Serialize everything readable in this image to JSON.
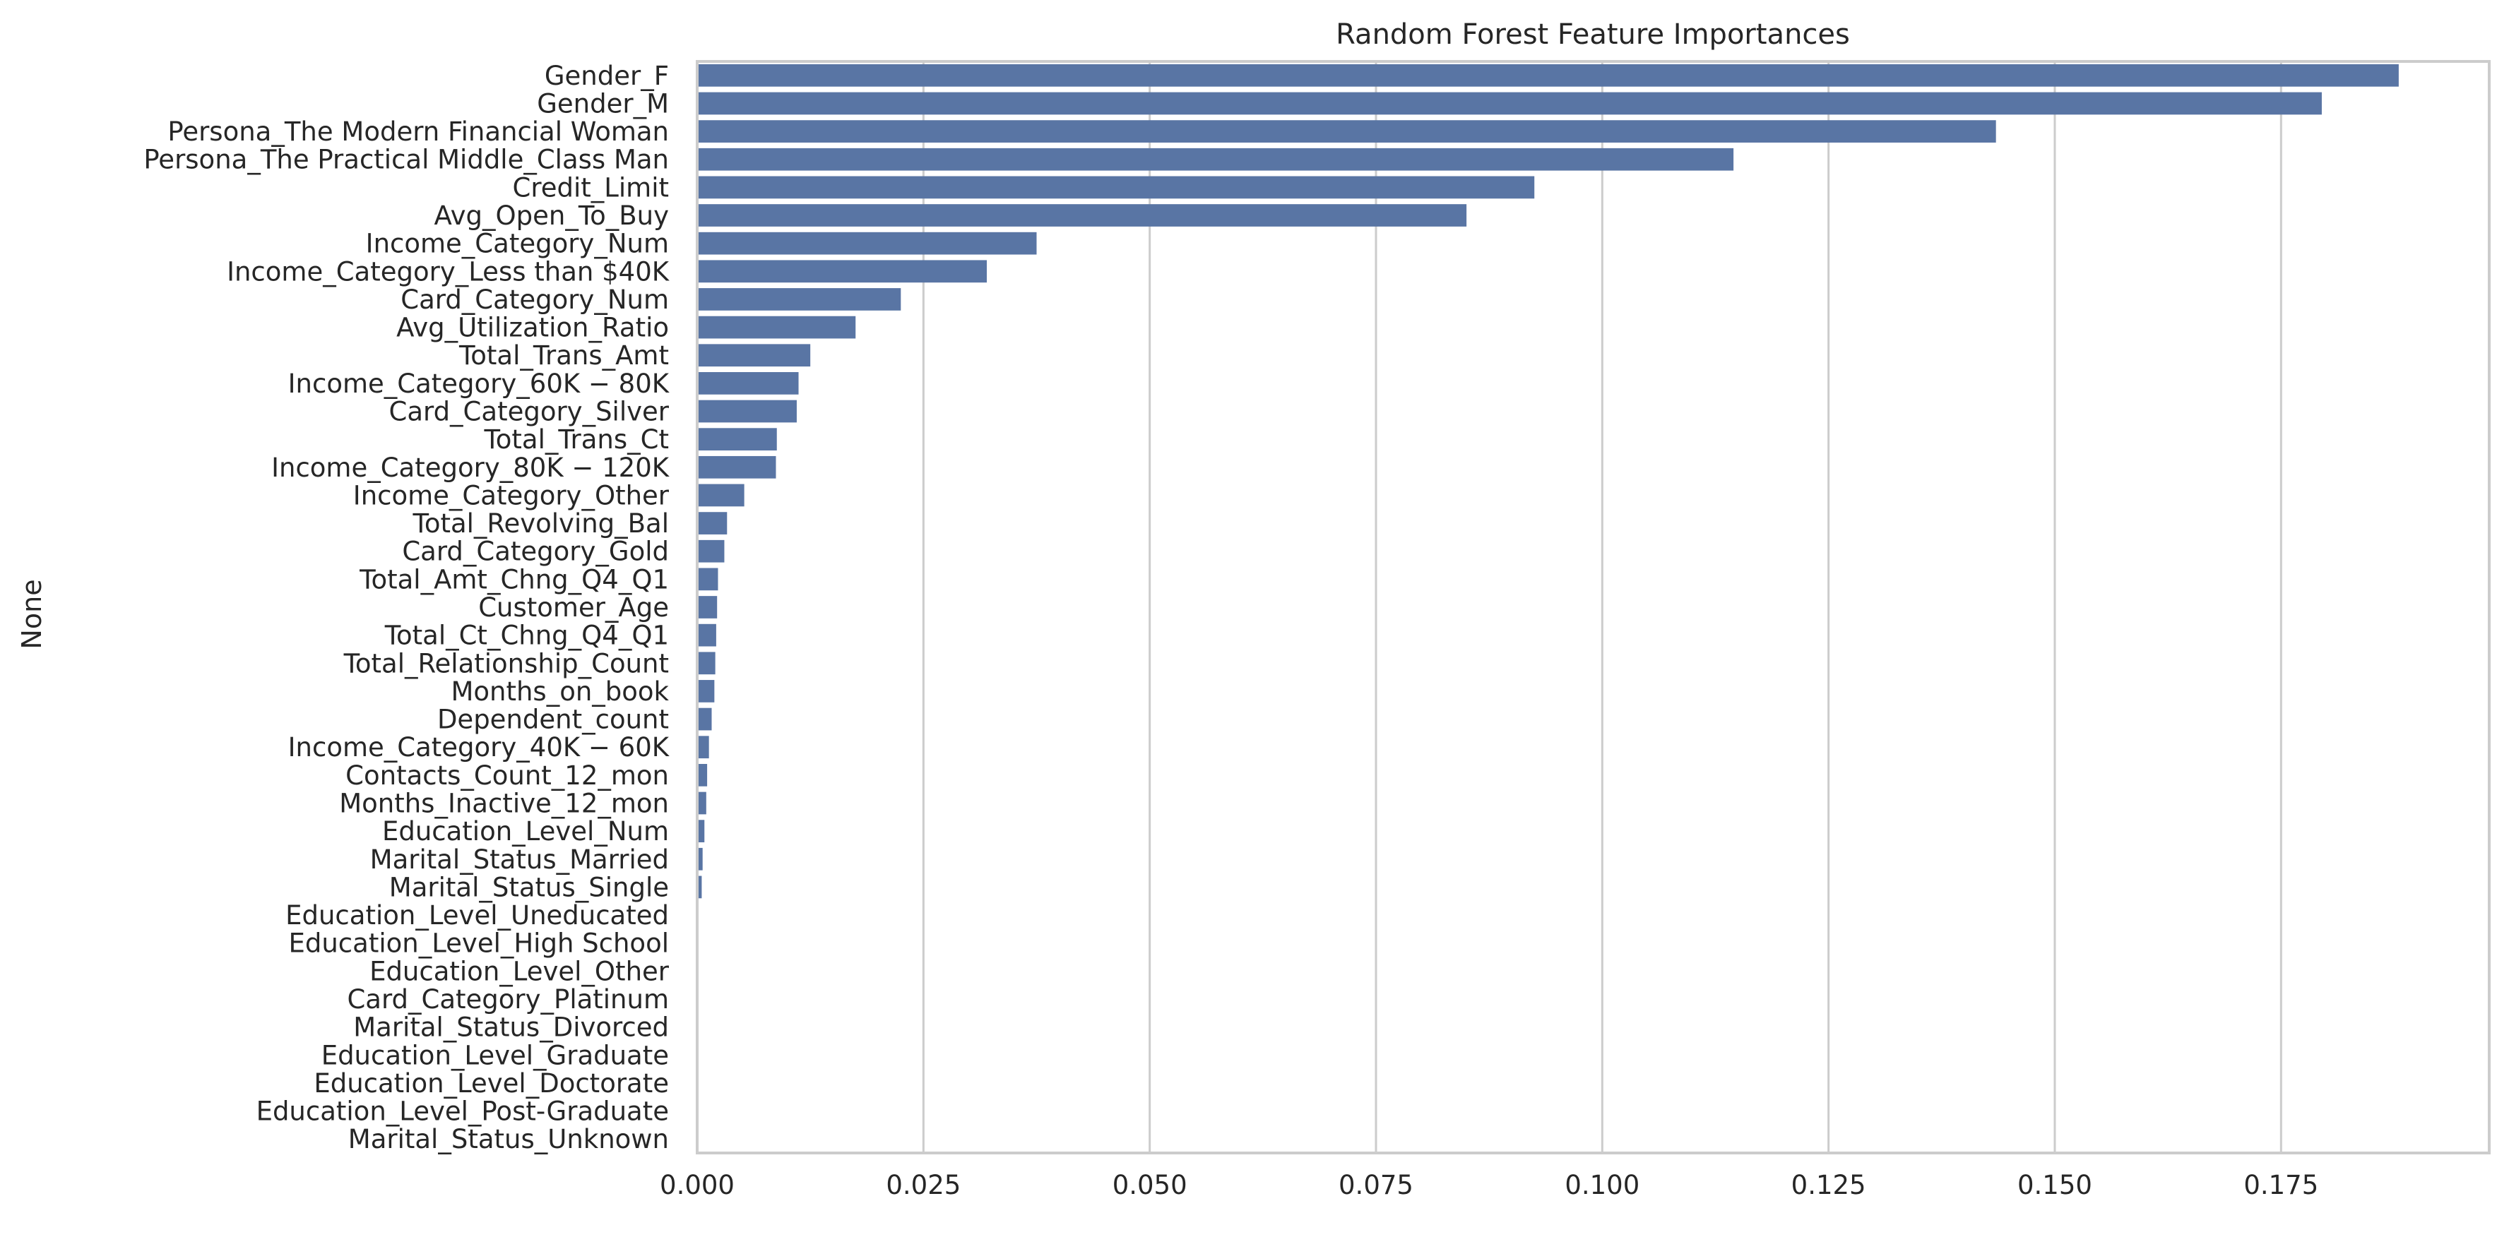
{
  "chart_data": {
    "type": "bar",
    "orientation": "horizontal",
    "title": "Random Forest Feature Importances",
    "xlabel": "",
    "ylabel": "None",
    "xlim": [
      0,
      0.198
    ],
    "xticks": [
      "0.000",
      "0.025",
      "0.050",
      "0.075",
      "0.100",
      "0.125",
      "0.150",
      "0.175"
    ],
    "grid": "vertical",
    "bar_color": "#5975a4",
    "categories": [
      "Gender_F",
      "Gender_M",
      "Persona_The Modern Financial Woman",
      "Persona_The Practical Middle_Class Man",
      "Credit_Limit",
      "Avg_Open_To_Buy",
      "Income_Category_Num",
      "Income_Category_Less than $40K",
      "Card_Category_Num",
      "Avg_Utilization_Ratio",
      "Total_Trans_Amt",
      "Income_Category_60K − 80K",
      "Card_Category_Silver",
      "Total_Trans_Ct",
      "Income_Category_80K − 120K",
      "Income_Category_Other",
      "Total_Revolving_Bal",
      "Card_Category_Gold",
      "Total_Amt_Chng_Q4_Q1",
      "Customer_Age",
      "Total_Ct_Chng_Q4_Q1",
      "Total_Relationship_Count",
      "Months_on_book",
      "Dependent_count",
      "Income_Category_40K − 60K",
      "Contacts_Count_12_mon",
      "Months_Inactive_12_mon",
      "Education_Level_Num",
      "Marital_Status_Married",
      "Marital_Status_Single",
      "Education_Level_Uneducated",
      "Education_Level_High School",
      "Education_Level_Other",
      "Card_Category_Platinum",
      "Marital_Status_Divorced",
      "Education_Level_Graduate",
      "Education_Level_Doctorate",
      "Education_Level_Post-Graduate",
      "Marital_Status_Unknown"
    ],
    "values": [
      0.188,
      0.1795,
      0.1435,
      0.1145,
      0.0925,
      0.085,
      0.0375,
      0.032,
      0.0225,
      0.0175,
      0.0125,
      0.0112,
      0.011,
      0.0088,
      0.0087,
      0.0052,
      0.0033,
      0.003,
      0.0023,
      0.0022,
      0.0021,
      0.002,
      0.0019,
      0.0016,
      0.0013,
      0.0011,
      0.001,
      0.0008,
      0.0006,
      0.0005,
      0.0001,
      0.0001,
      0.0001,
      0.0001,
      0.0001,
      0.0001,
      0.0001,
      0.0001,
      0.0001
    ]
  }
}
